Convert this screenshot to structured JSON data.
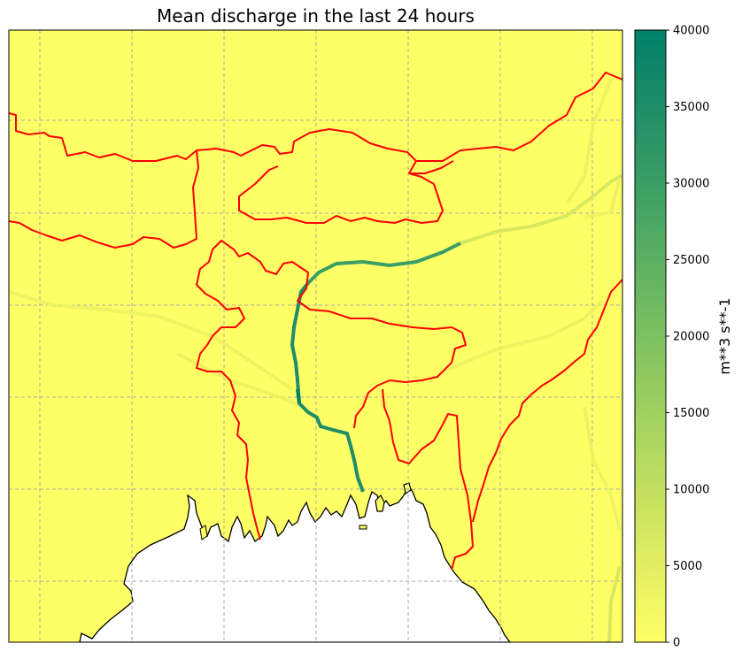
{
  "map": {
    "title": "Mean discharge in the last 24 hours",
    "land_color": "#ffff66",
    "sea_color": "#ffffff",
    "border_color": "#ff0000",
    "coast_color": "#000000",
    "grid_color": "#aaaaaa"
  },
  "colorbar": {
    "label": "m**3 s**-1",
    "min": 0,
    "max": 40000,
    "ticks": [
      0,
      5000,
      10000,
      15000,
      20000,
      25000,
      30000,
      35000,
      40000
    ],
    "colors": [
      "#ffff66",
      "#e2ee62",
      "#c2df60",
      "#9fd160",
      "#7dc160",
      "#5bb062",
      "#3a9e65",
      "#1e8d68",
      "#008069"
    ]
  }
}
